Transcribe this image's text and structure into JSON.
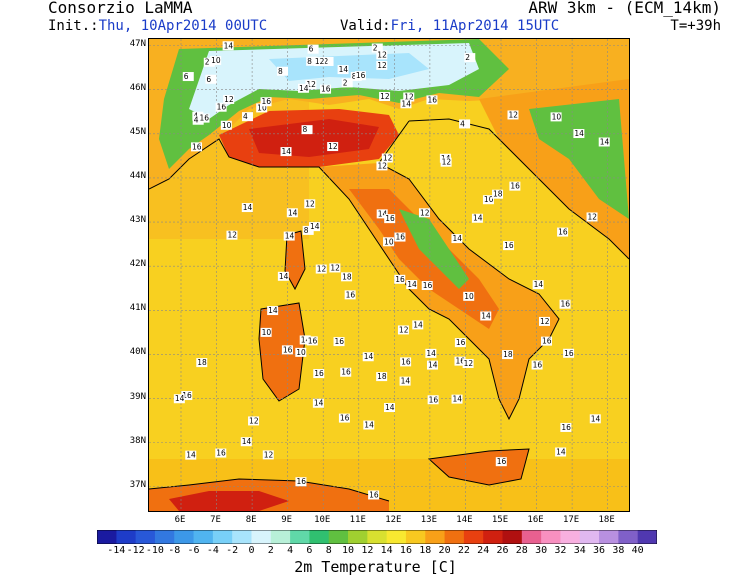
{
  "header": {
    "org": "Consorzio LaMMA",
    "model": "ARW 3km - (ECM_14km)",
    "init_label": "Init.:",
    "init_value": "Thu, 10Apr2014 00UTC",
    "valid_label": "Valid:",
    "valid_value": "Fri, 11Apr2014 15UTC",
    "timestep": "T=+39h"
  },
  "map": {
    "lat_labels": [
      "47N",
      "46N",
      "45N",
      "44N",
      "43N",
      "42N",
      "41N",
      "40N",
      "39N",
      "38N",
      "37N"
    ],
    "lon_labels": [
      "6E",
      "7E",
      "8E",
      "9E",
      "10E",
      "11E",
      "12E",
      "13E",
      "14E",
      "15E",
      "16E",
      "17E",
      "18E"
    ],
    "isotherm_labels": [
      "16",
      "2",
      "12",
      "4",
      "8",
      "10",
      "2",
      "2",
      "12",
      "2",
      "14",
      "4",
      "6",
      "2",
      "14",
      "12",
      "10",
      "8",
      "14",
      "16",
      "8",
      "4",
      "4",
      "12",
      "16",
      "12",
      "10",
      "6",
      "6",
      "12",
      "14",
      "12",
      "14",
      "12",
      "8",
      "12",
      "12",
      "16",
      "12",
      "16",
      "16",
      "12",
      "14",
      "10",
      "8",
      "16",
      "14",
      "12",
      "16",
      "12",
      "14",
      "14",
      "16",
      "18",
      "14",
      "14",
      "16",
      "12",
      "12",
      "10",
      "14",
      "16",
      "14",
      "12",
      "16",
      "14",
      "14",
      "10",
      "14",
      "10",
      "12",
      "14",
      "14",
      "18",
      "16",
      "14",
      "12",
      "14",
      "16",
      "14",
      "16",
      "10",
      "10",
      "12",
      "16",
      "14",
      "14",
      "18",
      "14",
      "16",
      "16",
      "16",
      "14",
      "16",
      "14",
      "14",
      "16",
      "16",
      "16",
      "12",
      "12",
      "14",
      "14",
      "14",
      "14",
      "12",
      "16",
      "16",
      "16",
      "14",
      "16",
      "18",
      "18",
      "16",
      "16",
      "14",
      "14",
      "16",
      "16",
      "16",
      "16",
      "16",
      "14",
      "16"
    ]
  },
  "colorbar": {
    "title": "2m Temperature [C]",
    "ticks": [
      "-14",
      "-12",
      "-10",
      "-8",
      "-6",
      "-4",
      "-2",
      "0",
      "2",
      "4",
      "6",
      "8",
      "10",
      "12",
      "14",
      "16",
      "18",
      "20",
      "22",
      "24",
      "26",
      "28",
      "30",
      "32",
      "34",
      "36",
      "38",
      "40"
    ],
    "colors": [
      "#1a1aa0",
      "#1e3cc8",
      "#2858d8",
      "#3278e0",
      "#3c98e8",
      "#50b4f0",
      "#78d0f8",
      "#a8e4fc",
      "#d8f4fc",
      "#b8f0d8",
      "#60d8a8",
      "#30c070",
      "#60c040",
      "#a0d030",
      "#d8e030",
      "#f8e830",
      "#f8c820",
      "#f8a018",
      "#f07010",
      "#e84010",
      "#d02010",
      "#b01010",
      "#e86090",
      "#f890c0",
      "#f8b0e0",
      "#e0b8f0",
      "#b890e0",
      "#8060c8",
      "#5038b0"
    ]
  }
}
